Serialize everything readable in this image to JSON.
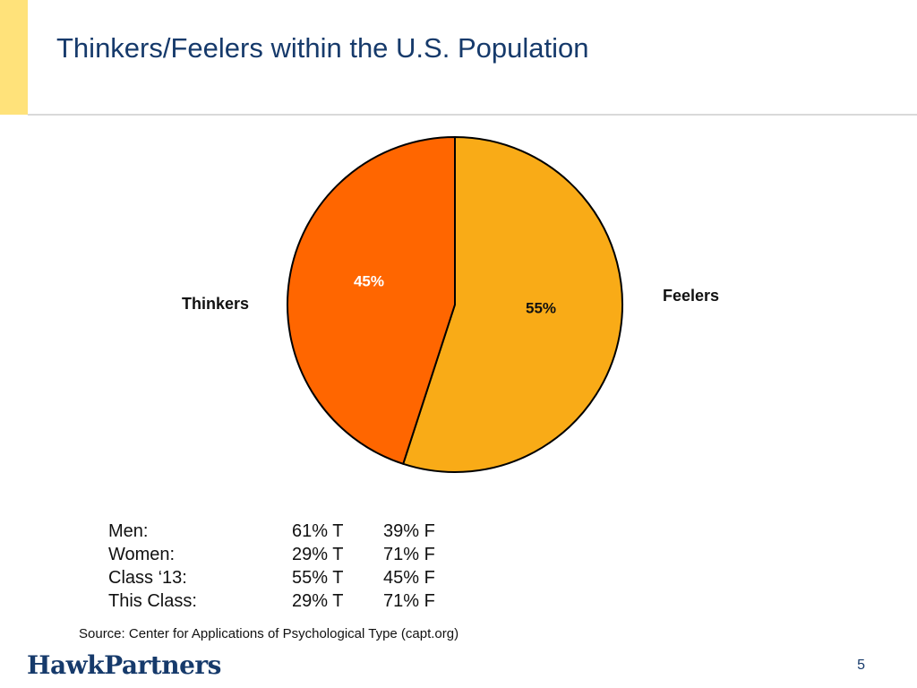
{
  "slide": {
    "title": "Thinkers/Feelers within the U.S. Population",
    "source": "Source:  Center for Applications of Psychological Type (capt.org)",
    "logo_text": "HawkPartners",
    "page_number": "5",
    "accent_color": "#ffe27a",
    "title_color": "#163a6b"
  },
  "stats": {
    "rows": [
      {
        "group": "Men:",
        "t": "61% T",
        "f": "39% F"
      },
      {
        "group": "Women:",
        "t": "29% T",
        "f": "71% F"
      },
      {
        "group": "Class ‘13:",
        "t": "55% T",
        "f": "45% F"
      },
      {
        "group": "This Class:",
        "t": "29% T",
        "f": "71% F"
      }
    ]
  },
  "chart_data": {
    "type": "pie",
    "title": "",
    "start_angle_deg": 0,
    "direction": "clockwise",
    "slices": [
      {
        "name": "Feelers",
        "value": 55,
        "label": "55%",
        "color": "#f9ab17",
        "label_color": "#111111"
      },
      {
        "name": "Thinkers",
        "value": 45,
        "label": "45%",
        "color": "#ff6600",
        "label_color": "#ffffff"
      }
    ]
  }
}
